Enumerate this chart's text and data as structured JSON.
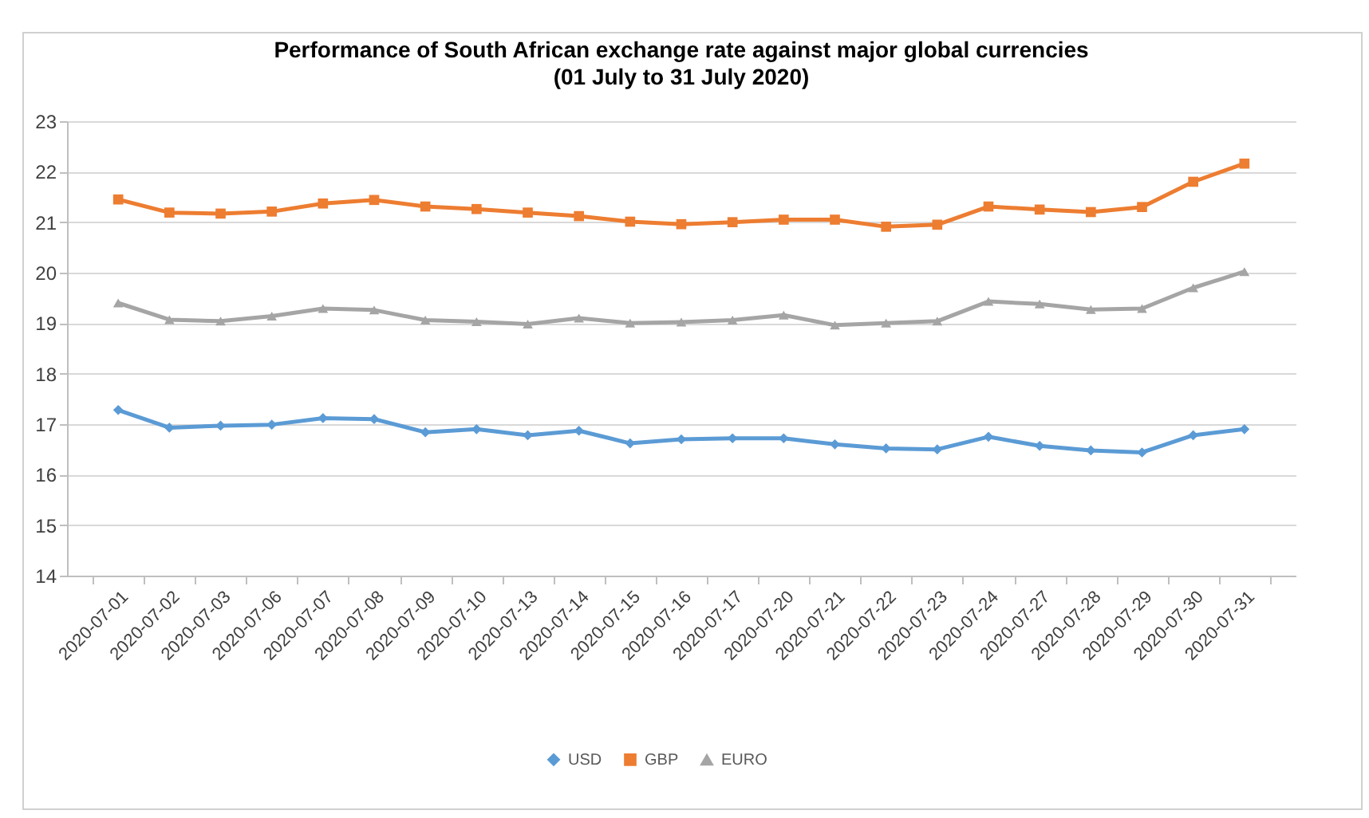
{
  "chart_data": {
    "type": "line",
    "title": "Performance of South African exchange rate against major global currencies",
    "subtitle": "(01 July to 31 July 2020)",
    "categories": [
      "2020-07-01",
      "2020-07-02",
      "2020-07-03",
      "2020-07-06",
      "2020-07-07",
      "2020-07-08",
      "2020-07-09",
      "2020-07-10",
      "2020-07-13",
      "2020-07-14",
      "2020-07-15",
      "2020-07-16",
      "2020-07-17",
      "2020-07-20",
      "2020-07-21",
      "2020-07-22",
      "2020-07-23",
      "2020-07-24",
      "2020-07-27",
      "2020-07-28",
      "2020-07-29",
      "2020-07-30",
      "2020-07-31"
    ],
    "series": [
      {
        "name": "USD",
        "color": "#5b9bd5",
        "marker": "diamond",
        "values": [
          17.28,
          16.93,
          16.97,
          16.99,
          17.12,
          17.1,
          16.84,
          16.9,
          16.78,
          16.87,
          16.62,
          16.7,
          16.72,
          16.72,
          16.6,
          16.52,
          16.5,
          16.75,
          16.57,
          16.48,
          16.44,
          16.78,
          16.9
        ]
      },
      {
        "name": "GBP",
        "color": "#ed7d31",
        "marker": "square",
        "values": [
          21.45,
          21.19,
          21.17,
          21.21,
          21.37,
          21.44,
          21.31,
          21.26,
          21.19,
          21.12,
          21.01,
          20.96,
          21.0,
          21.05,
          21.05,
          20.91,
          20.95,
          21.31,
          21.25,
          21.2,
          21.3,
          21.8,
          22.16
        ]
      },
      {
        "name": "EURO",
        "color": "#a5a5a5",
        "marker": "triangle",
        "values": [
          19.4,
          19.07,
          19.04,
          19.14,
          19.29,
          19.26,
          19.06,
          19.03,
          18.98,
          19.1,
          19.0,
          19.02,
          19.06,
          19.16,
          18.96,
          19.0,
          19.04,
          19.43,
          19.38,
          19.27,
          19.29,
          19.7,
          20.02
        ]
      }
    ],
    "ylim": [
      14,
      23
    ],
    "yticks": [
      14,
      15,
      16,
      17,
      18,
      19,
      20,
      21,
      22,
      23
    ],
    "grid": "y",
    "legend": "bottom"
  }
}
